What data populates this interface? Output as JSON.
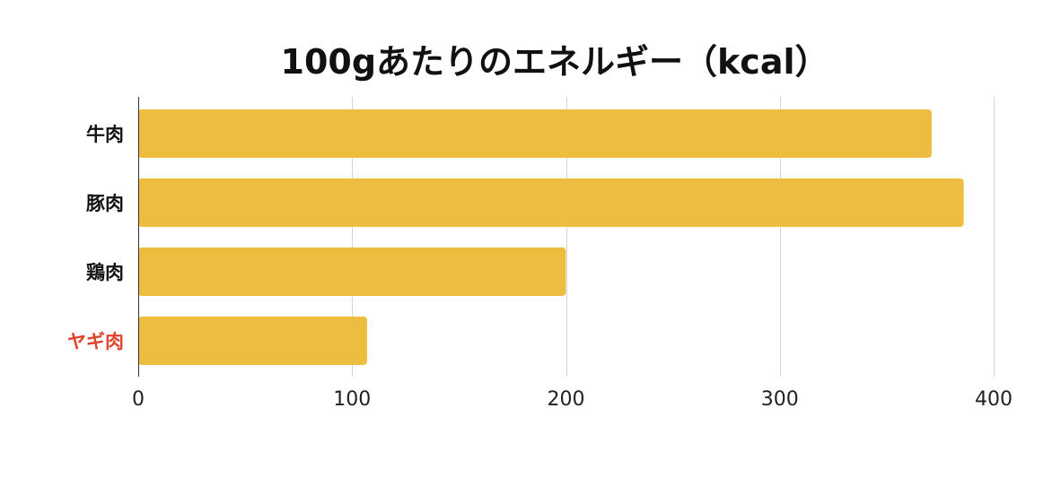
{
  "chart_data": {
    "type": "bar",
    "orientation": "horizontal",
    "title": "100gあたりのエネルギー（kcal）",
    "categories": [
      "牛肉",
      "豚肉",
      "鶏肉",
      "ヤギ肉"
    ],
    "values": [
      371,
      386,
      200,
      107
    ],
    "xlim": [
      0,
      400
    ],
    "xticks": [
      0,
      100,
      200,
      300,
      400
    ],
    "xlabel": "",
    "ylabel": "",
    "grid": "vertical",
    "legend": "none",
    "colors": {
      "bar": "#EDBD3F",
      "label_default": "#111111",
      "label_highlight": "#E0452B"
    },
    "highlight_category": "ヤギ肉"
  }
}
